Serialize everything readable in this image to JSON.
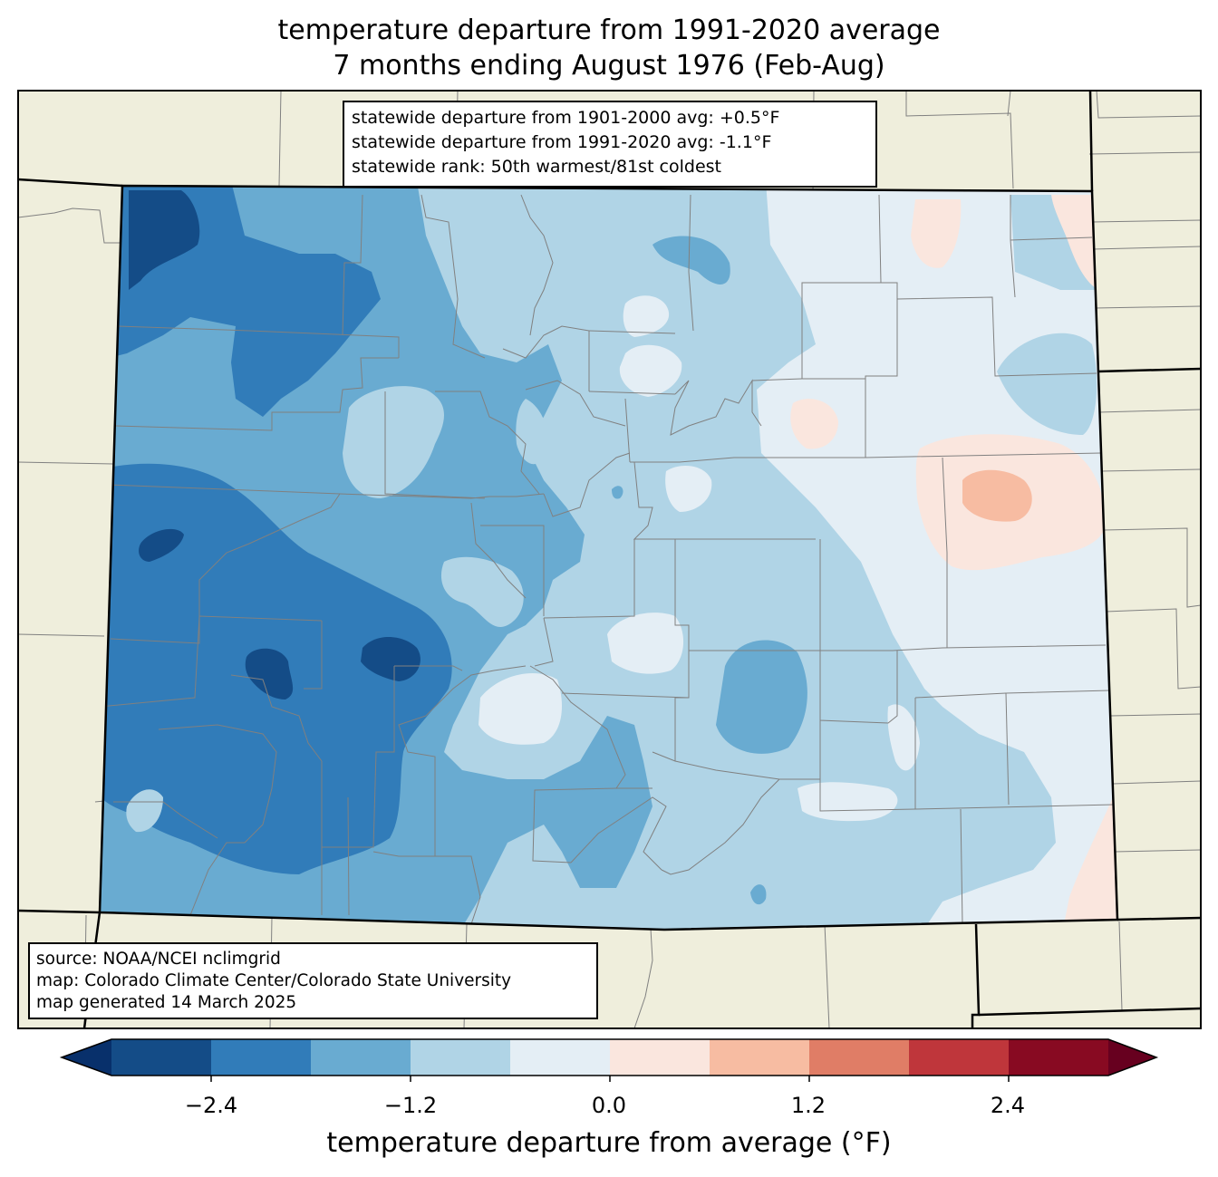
{
  "title": {
    "line1": "temperature departure from 1991-2020 average",
    "line2": "7 months ending August 1976 (Feb-Aug)"
  },
  "stats": {
    "line1": "statewide departure from 1901-2000 avg: +0.5°F",
    "line2": "statewide departure from 1991-2020 avg: -1.1°F",
    "line3": "statewide rank: 50th warmest/81st coldest"
  },
  "source": {
    "line1": "source: NOAA/NCEI nclimgrid",
    "line2": "map: Colorado Climate Center/Colorado State University",
    "line3": "map generated 14 March 2025"
  },
  "colorbar": {
    "title": "temperature departure from average (°F)",
    "tick_labels": [
      "−2.4",
      "−1.2",
      "0.0",
      "1.2",
      "2.4"
    ],
    "bins": [
      {
        "range": "< -3.0",
        "color": "#08306b"
      },
      {
        "range": "-3.0 to -2.4",
        "color": "#144c87"
      },
      {
        "range": "-2.4 to -1.8",
        "color": "#317cb9"
      },
      {
        "range": "-1.8 to -1.2",
        "color": "#69abd1"
      },
      {
        "range": "-1.2 to -0.6",
        "color": "#b0d4e6"
      },
      {
        "range": "-0.6 to 0.0",
        "color": "#e4eef5"
      },
      {
        "range": "0.0 to 0.6",
        "color": "#fae6de"
      },
      {
        "range": "0.6 to 1.2",
        "color": "#f7bca2"
      },
      {
        "range": "1.2 to 1.8",
        "color": "#e07d66"
      },
      {
        "range": "1.8 to 2.4",
        "color": "#bf363b"
      },
      {
        "range": "2.4 to 3.0",
        "color": "#880a22"
      },
      {
        "range": "> 3.0",
        "color": "#67001f"
      }
    ]
  },
  "colors": {
    "land_outside": "#efeedc",
    "county_lines": "#808080",
    "state_lines": "#000000"
  }
}
